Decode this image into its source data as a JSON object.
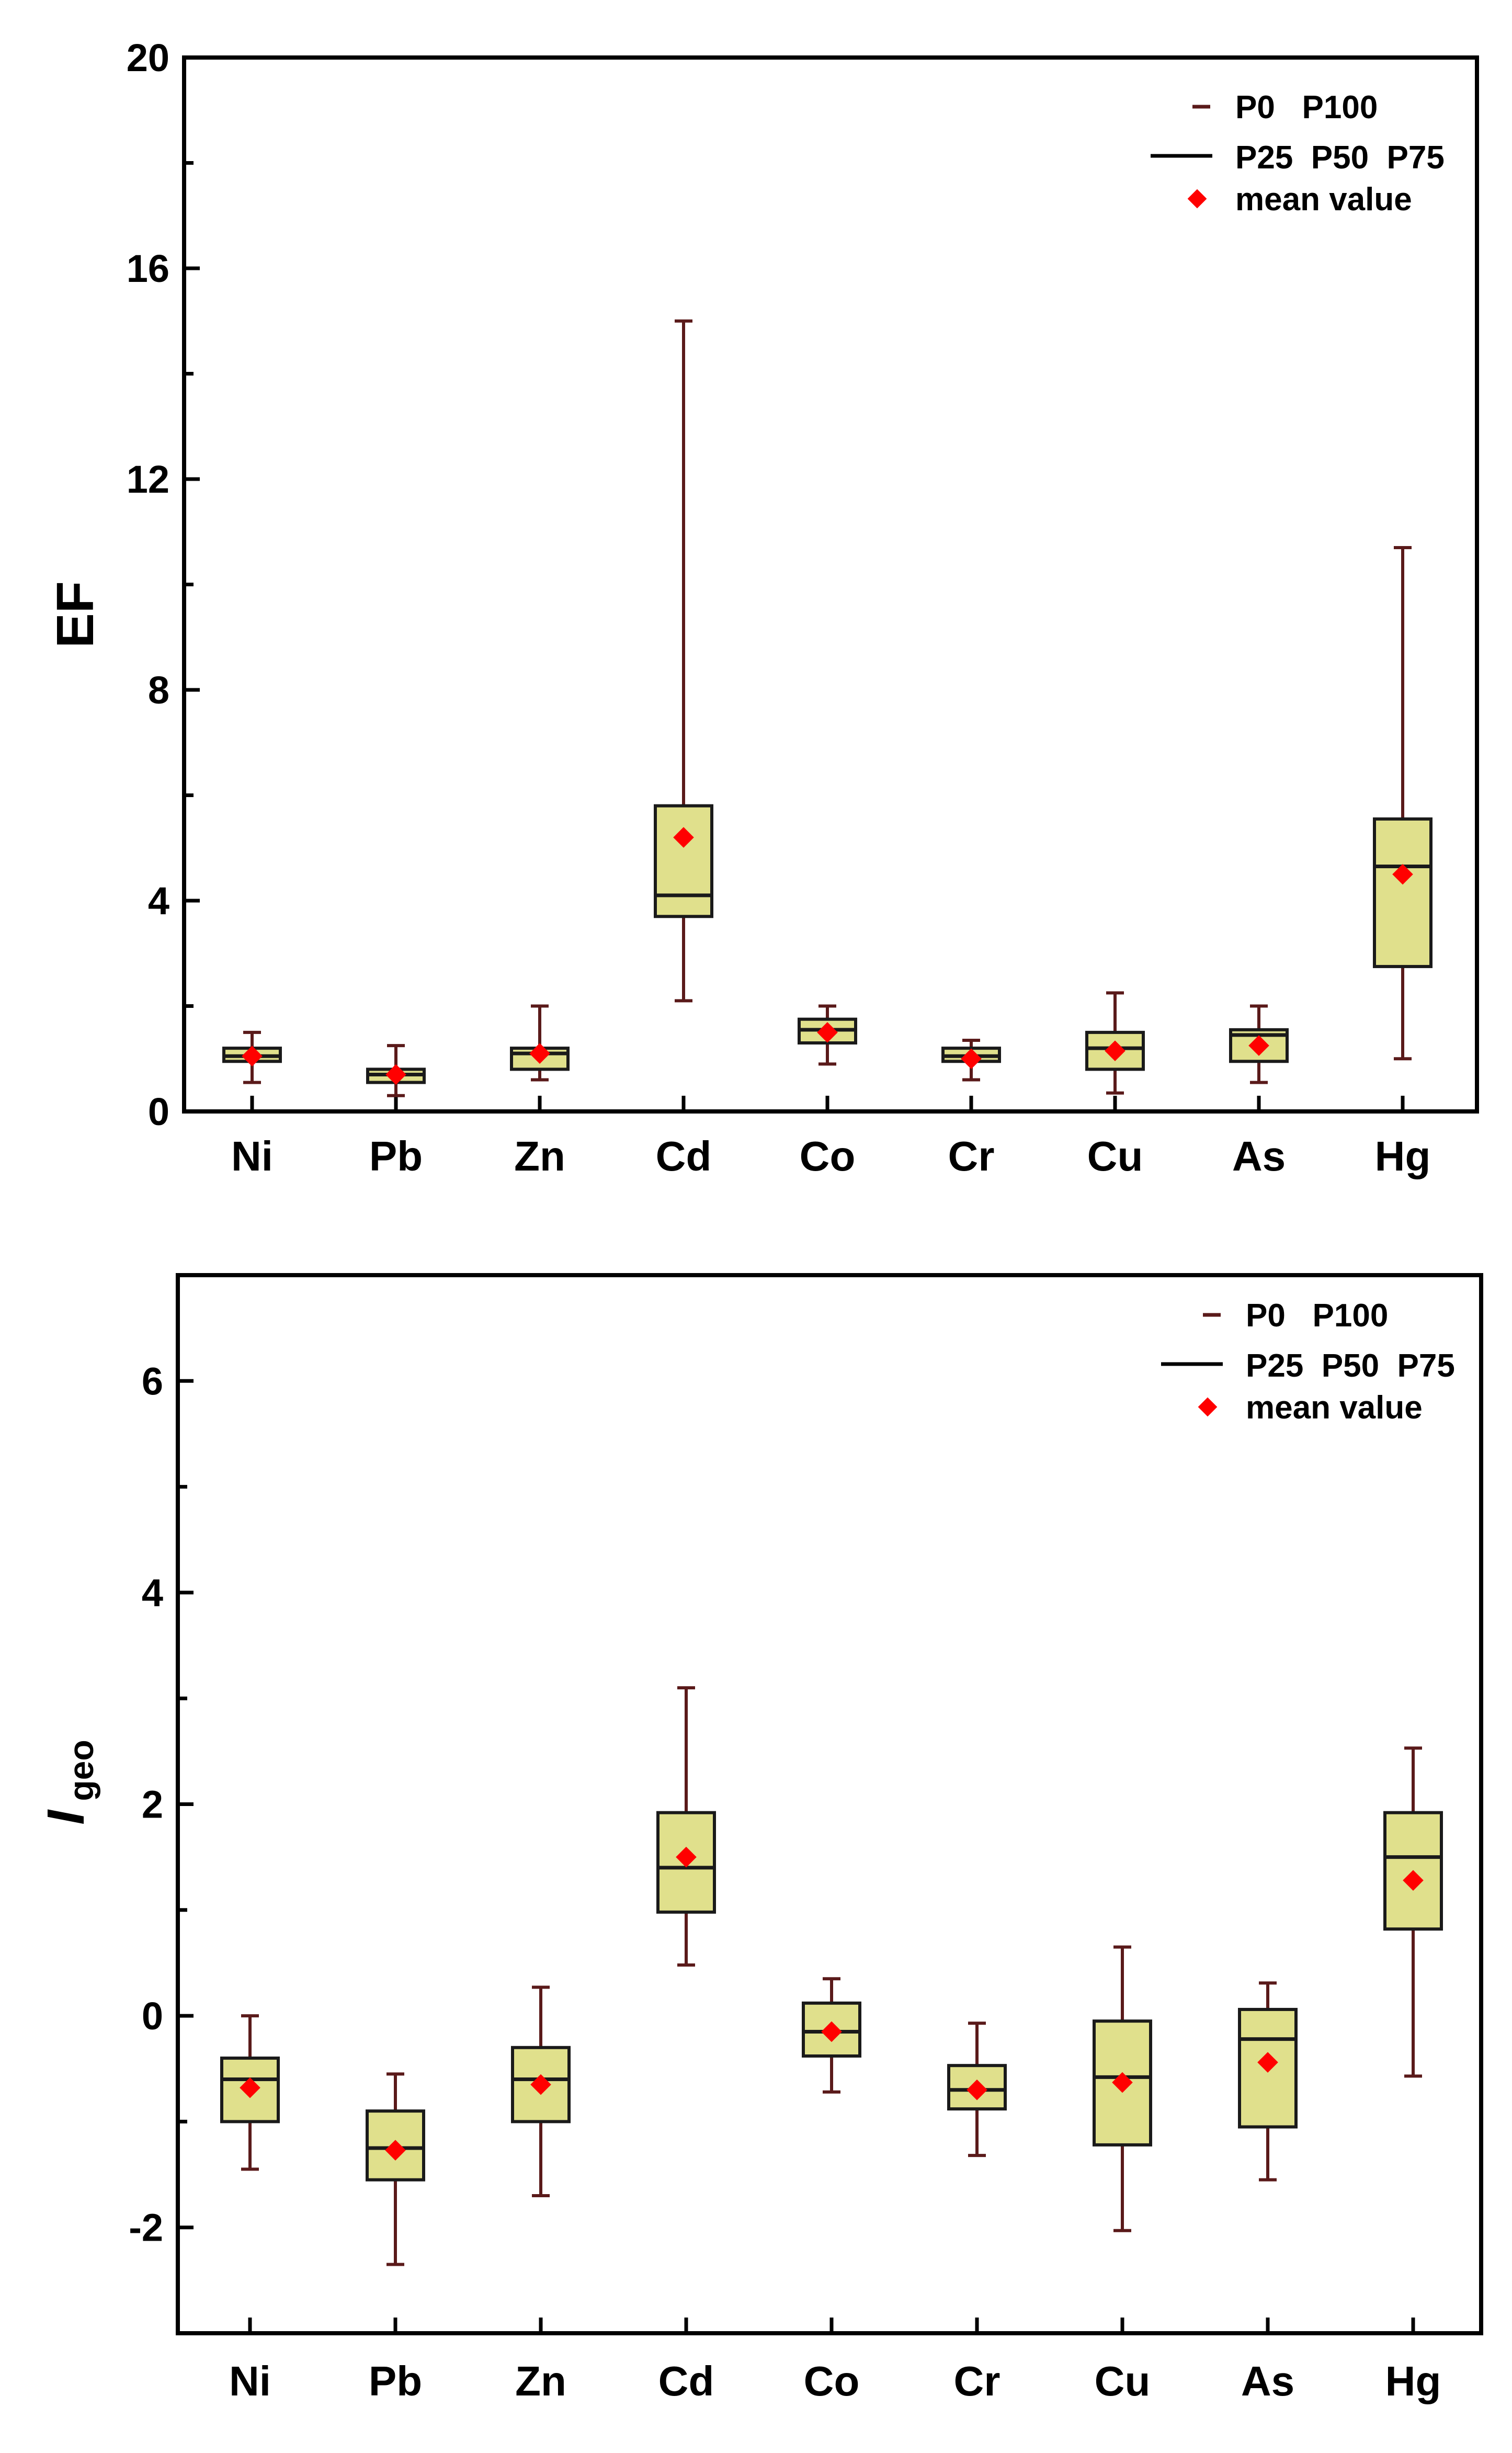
{
  "chart_data": [
    {
      "type": "box",
      "id": "ef",
      "ylabel": "EF",
      "ylim": [
        0,
        20
      ],
      "yticks": [
        0,
        4,
        8,
        12,
        16,
        20
      ],
      "yticks_labels": [
        "0",
        "4",
        "8",
        "12",
        "16",
        "20"
      ],
      "categories": [
        "Ni",
        "Pb",
        "Zn",
        "Cd",
        "Co",
        "Cr",
        "Cu",
        "As",
        "Hg"
      ],
      "boxes": [
        {
          "p0": 0.55,
          "p25": 0.95,
          "p50": 1.05,
          "p75": 1.2,
          "p100": 1.5,
          "mean": 1.05
        },
        {
          "p0": 0.3,
          "p25": 0.55,
          "p50": 0.7,
          "p75": 0.8,
          "p100": 1.25,
          "mean": 0.7
        },
        {
          "p0": 0.6,
          "p25": 0.8,
          "p50": 1.1,
          "p75": 1.2,
          "p100": 2.0,
          "mean": 1.1
        },
        {
          "p0": 2.1,
          "p25": 3.7,
          "p50": 4.1,
          "p75": 5.8,
          "p100": 15.0,
          "mean": 5.2
        },
        {
          "p0": 0.9,
          "p25": 1.3,
          "p50": 1.55,
          "p75": 1.75,
          "p100": 2.0,
          "mean": 1.5
        },
        {
          "p0": 0.6,
          "p25": 0.95,
          "p50": 1.05,
          "p75": 1.2,
          "p100": 1.35,
          "mean": 1.0
        },
        {
          "p0": 0.35,
          "p25": 0.8,
          "p50": 1.2,
          "p75": 1.5,
          "p100": 2.25,
          "mean": 1.15
        },
        {
          "p0": 0.55,
          "p25": 0.95,
          "p50": 1.45,
          "p75": 1.55,
          "p100": 2.0,
          "mean": 1.25
        },
        {
          "p0": 1.0,
          "p25": 2.75,
          "p50": 4.65,
          "p75": 5.55,
          "p100": 10.7,
          "mean": 4.5
        }
      ],
      "legend": {
        "line1": "P0   P100",
        "line2": "P25  P50  P75",
        "line3": "mean value"
      }
    },
    {
      "type": "box",
      "id": "igeo",
      "ylabel_main": "I",
      "ylabel_sub": "geo",
      "ylim": [
        -3,
        7
      ],
      "yticks": [
        -2,
        0,
        2,
        4,
        6
      ],
      "yticks_labels": [
        "-2",
        "0",
        "2",
        "4",
        "6"
      ],
      "categories": [
        "Ni",
        "Pb",
        "Zn",
        "Cd",
        "Co",
        "Cr",
        "Cu",
        "As",
        "Hg"
      ],
      "boxes": [
        {
          "p0": -1.45,
          "p25": -1.0,
          "p50": -0.6,
          "p75": -0.4,
          "p100": 0.0,
          "mean": -0.68
        },
        {
          "p0": -2.35,
          "p25": -1.55,
          "p50": -1.25,
          "p75": -0.9,
          "p100": -0.55,
          "mean": -1.27
        },
        {
          "p0": -1.7,
          "p25": -1.0,
          "p50": -0.6,
          "p75": -0.3,
          "p100": 0.27,
          "mean": -0.65
        },
        {
          "p0": 0.48,
          "p25": 0.98,
          "p50": 1.4,
          "p75": 1.92,
          "p100": 3.1,
          "mean": 1.5
        },
        {
          "p0": -0.72,
          "p25": -0.38,
          "p50": -0.15,
          "p75": 0.12,
          "p100": 0.35,
          "mean": -0.15
        },
        {
          "p0": -1.32,
          "p25": -0.88,
          "p50": -0.7,
          "p75": -0.47,
          "p100": -0.07,
          "mean": -0.7
        },
        {
          "p0": -2.03,
          "p25": -1.22,
          "p50": -0.58,
          "p75": -0.05,
          "p100": 0.65,
          "mean": -0.63
        },
        {
          "p0": -1.55,
          "p25": -1.05,
          "p50": -0.22,
          "p75": 0.06,
          "p100": 0.31,
          "mean": -0.44
        },
        {
          "p0": -0.57,
          "p25": 0.82,
          "p50": 1.5,
          "p75": 1.92,
          "p100": 2.53,
          "mean": 1.28
        }
      ],
      "legend": {
        "line1": "P0   P100",
        "line2": "P25  P50  P75",
        "line3": "mean value"
      }
    }
  ],
  "colors": {
    "box_fill": "#e0e08c",
    "box_stroke": "#1a1a1a",
    "whisker": "#5a1a1a",
    "mean": "#ff0000",
    "axis": "#000000"
  }
}
